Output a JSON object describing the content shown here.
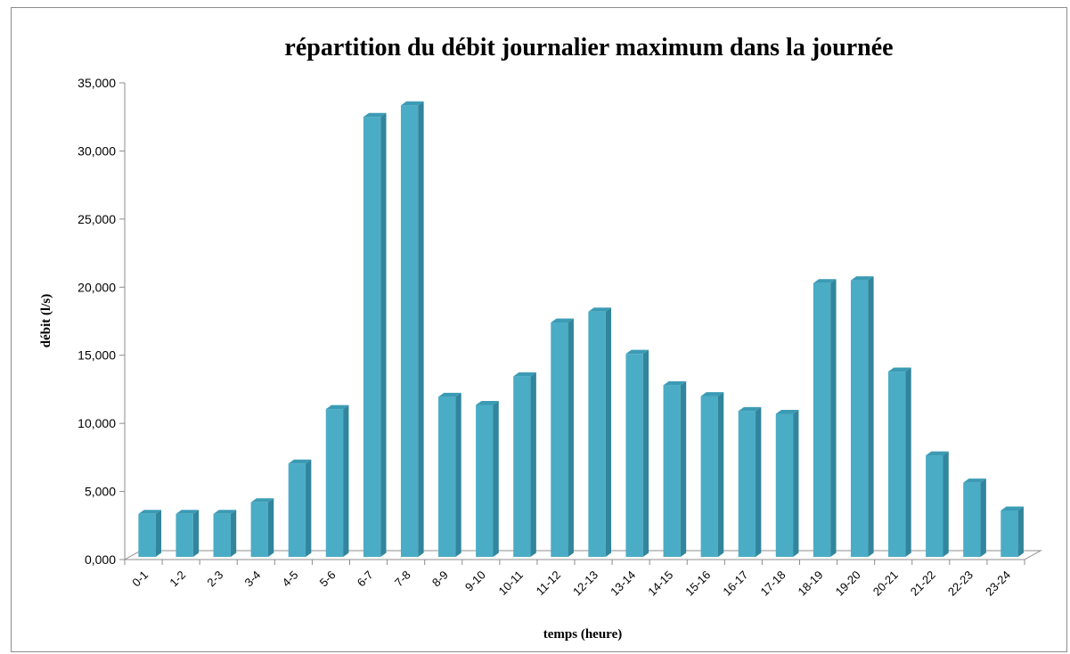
{
  "chart_data": {
    "type": "bar",
    "title": "répartition du débit journalier maximum dans la journée",
    "xlabel": "temps (heure)",
    "ylabel": "débit (l/s)",
    "ylim": [
      0,
      35000
    ],
    "yticks": [
      0,
      5000,
      10000,
      15000,
      20000,
      25000,
      30000,
      35000
    ],
    "ytick_labels": [
      "0,000",
      "5,000",
      "10,000",
      "15,000",
      "20,000",
      "25,000",
      "30,000",
      "35,000"
    ],
    "categories": [
      "0-1",
      "1-2",
      "2-3",
      "3-4",
      "4-5",
      "5-6",
      "6-7",
      "7-8",
      "8-9",
      "9-10",
      "10-11",
      "11-12",
      "12-13",
      "13-14",
      "14-15",
      "15-16",
      "16-17",
      "17-18",
      "18-19",
      "19-20",
      "20-21",
      "21-22",
      "22-23",
      "23-24"
    ],
    "values": [
      3350,
      3350,
      3350,
      4200,
      7050,
      11050,
      32500,
      33350,
      11950,
      11350,
      13450,
      17400,
      18200,
      15100,
      12800,
      12000,
      10900,
      10700,
      20300,
      20500,
      13800,
      7650,
      5650,
      3600
    ],
    "bar_color": "#4bacc6",
    "bar_side_color": "#31859c",
    "bar_top_color": "#3b9bb5",
    "grid": false,
    "legend": "none"
  }
}
